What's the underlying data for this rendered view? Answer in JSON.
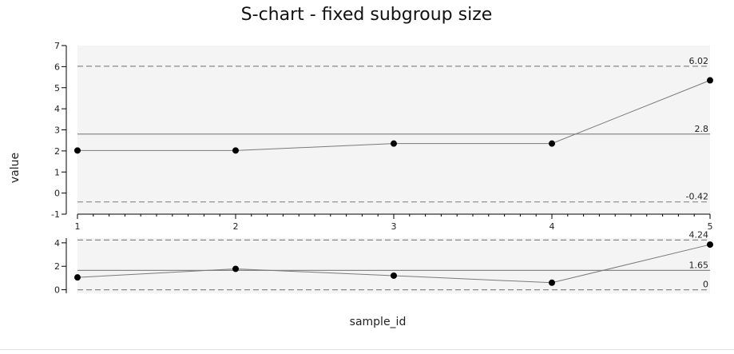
{
  "chart_data": [
    {
      "type": "line",
      "title": "S-chart - fixed subgroup size",
      "xlabel": "sample_id",
      "ylabel": "value",
      "x": [
        1,
        2,
        3,
        4,
        5
      ],
      "x_tick_labels": [
        "1",
        "2",
        "3",
        "4",
        "5"
      ],
      "ylim": [
        -1,
        7
      ],
      "y_ticks": [
        -1,
        0,
        1,
        2,
        3,
        4,
        5,
        6,
        7
      ],
      "series": [
        {
          "values": [
            2.02,
            2.02,
            2.35,
            2.35,
            5.35
          ]
        }
      ],
      "control_limits": [
        {
          "value": 6.02,
          "label": "6.02",
          "style": "dashed"
        },
        {
          "value": 2.8,
          "label": "2.8",
          "style": "solid"
        },
        {
          "value": -0.42,
          "label": "-0.42",
          "style": "dashed"
        }
      ],
      "background": "#f4f4f4",
      "grid": false
    },
    {
      "type": "line",
      "x": [
        1,
        2,
        3,
        4,
        5
      ],
      "ylim": [
        -0.3,
        4.4
      ],
      "y_ticks": [
        0,
        2,
        4
      ],
      "series": [
        {
          "values": [
            1.05,
            1.78,
            1.2,
            0.6,
            3.85
          ]
        }
      ],
      "control_limits": [
        {
          "value": 4.24,
          "label": "4.24",
          "style": "dashed"
        },
        {
          "value": 1.65,
          "label": "1.65",
          "style": "solid"
        },
        {
          "value": 0,
          "label": "0",
          "style": "dashed"
        }
      ],
      "background": "#f4f4f4",
      "grid": false
    }
  ]
}
